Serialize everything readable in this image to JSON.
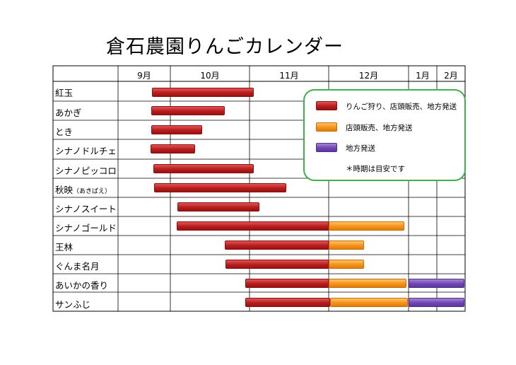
{
  "title": "倉石農園りんごカレンダー",
  "months": [
    "9月",
    "10月",
    "11月",
    "12月",
    "1月",
    "2月"
  ],
  "varieties": [
    {
      "name": "紅玉",
      "note": ""
    },
    {
      "name": "あかぎ",
      "note": ""
    },
    {
      "name": "とき",
      "note": ""
    },
    {
      "name": "シナノドルチェ",
      "note": ""
    },
    {
      "name": "シナノピッコロ",
      "note": ""
    },
    {
      "name": "秋映",
      "note": "（あきばえ）"
    },
    {
      "name": "シナノスイート",
      "note": ""
    },
    {
      "name": "シナノゴールド",
      "note": ""
    },
    {
      "name": "王林",
      "note": ""
    },
    {
      "name": "ぐんま名月",
      "note": ""
    },
    {
      "name": "あいかの香り",
      "note": ""
    },
    {
      "name": "サンふじ",
      "note": ""
    }
  ],
  "legend": {
    "red": "りんご狩り、店頭販売、地方発送",
    "orange": "店頭販売、地方発送",
    "purple": "地方発送",
    "note": "＊時期は目安です"
  },
  "colors": {
    "red": "#b81d1d",
    "orange": "#f5921a",
    "purple": "#7046b3",
    "legend_border": "#3fb04a"
  }
}
